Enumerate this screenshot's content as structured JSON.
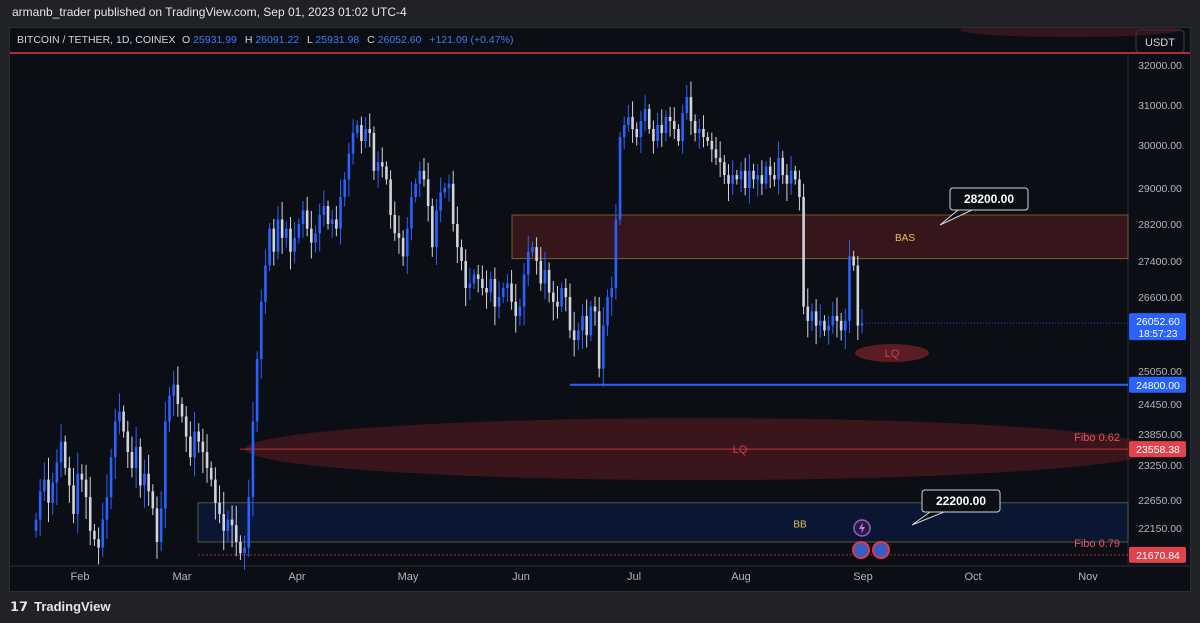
{
  "header": {
    "publish_line": "armanb_trader published on TradingView.com, Sep 01, 2023 01:02 UTC-4"
  },
  "symbol": {
    "name": "BITCOIN / TETHER, 1D, COINEX",
    "o_label": "O",
    "o_value": "25931.99",
    "h_label": "H",
    "h_value": "26091.22",
    "l_label": "L",
    "l_value": "25931.98",
    "c_label": "C",
    "c_value": "26052.60",
    "change": "+121.09 (+0.47%)"
  },
  "currency_button": "USDT",
  "footer": {
    "brand": "TradingView"
  },
  "colors": {
    "up": "#2962ff",
    "down": "#d1d4dc",
    "zone_red": "#5a1b20",
    "zone_blue": "#0b1735",
    "line_blue": "#2962ff",
    "line_red": "#e03a45",
    "accent_yellow": "#e3c05a"
  },
  "chart_data": {
    "type": "candlestick",
    "y_axis": {
      "ticks": [
        "32000.00",
        "31000.00",
        "30000.00",
        "29000.00",
        "28200.00",
        "27400.00",
        "26600.00",
        "25050.00",
        "24450.00",
        "23850.00",
        "23250.00",
        "22650.00",
        "22150.00"
      ],
      "ylim": [
        21600,
        32400
      ]
    },
    "x_axis": {
      "ticks": [
        "Feb",
        "Mar",
        "Apr",
        "May",
        "Jun",
        "Jul",
        "Aug",
        "Sep",
        "Oct",
        "Nov"
      ]
    },
    "price_labels": [
      {
        "value": "26052.60",
        "sub": "18:57:23",
        "kind": "last"
      },
      {
        "value": "24800.00",
        "kind": "blue"
      },
      {
        "value": "23558.38",
        "kind": "red"
      },
      {
        "value": "21670.84",
        "kind": "red"
      }
    ],
    "zones": [
      {
        "label": "BAS",
        "top": 28400,
        "bottom": 27450
      },
      {
        "label": "BB",
        "top": 22600,
        "bottom": 21900
      }
    ],
    "lines": [
      {
        "value": 24800,
        "start": "Jun"
      },
      {
        "value": 23558.38,
        "label": "Fibo 0.62"
      },
      {
        "value": 21670.84,
        "label": "Fibo 0.79"
      },
      {
        "value": 32300
      }
    ],
    "ellipses": [
      {
        "label": "LQ",
        "value": 23558
      },
      {
        "label": "LQ",
        "value": 25300
      }
    ],
    "callouts": [
      {
        "text": "28200.00"
      },
      {
        "text": "22200.00"
      }
    ],
    "approx_closes": [
      22300,
      22800,
      23000,
      22600,
      22950,
      23300,
      23700,
      23200,
      22900,
      22400,
      23100,
      23000,
      22700,
      22100,
      21950,
      21800,
      22300,
      22700,
      23400,
      24100,
      24300,
      23900,
      23500,
      23200,
      23600,
      22900,
      23100,
      22800,
      22500,
      21900,
      22500,
      24100,
      24600,
      24800,
      24450,
      24200,
      23800,
      23400,
      23900,
      23700,
      23500,
      23200,
      23000,
      22600,
      22400,
      22100,
      22300,
      22200,
      21900,
      21700,
      21800,
      22700,
      24100,
      25300,
      26500,
      27300,
      28100,
      27600,
      28300,
      27900,
      28100,
      27600,
      27900,
      28200,
      28500,
      28100,
      27800,
      28000,
      28400,
      28600,
      28200,
      28300,
      28100,
      28800,
      29200,
      29800,
      30300,
      30500,
      30100,
      30400,
      30300,
      29400,
      29600,
      29500,
      29200,
      28400,
      28000,
      27900,
      27500,
      28100,
      28800,
      29100,
      29400,
      29200,
      28600,
      27700,
      28500,
      28900,
      29000,
      29100,
      28200,
      27700,
      27400,
      26800,
      26900,
      27100,
      27000,
      26800,
      26700,
      27000,
      26400,
      26600,
      26800,
      26900,
      26500,
      26200,
      26400,
      27100,
      27600,
      27700,
      27400,
      26900,
      27200,
      26700,
      26500,
      26400,
      26800,
      26600,
      25900,
      25700,
      25900,
      26200,
      25800,
      26400,
      26300,
      25100,
      26000,
      26600,
      26800,
      28300,
      30200,
      30500,
      30700,
      30400,
      30200,
      30600,
      30900,
      30400,
      30100,
      30500,
      30300,
      30700,
      30600,
      30400,
      30100,
      30800,
      31200,
      30600,
      30300,
      30400,
      30200,
      30100,
      29900,
      29700,
      29600,
      29300,
      29100,
      29300,
      29200,
      29400,
      29000,
      29400,
      29200,
      29300,
      29100,
      29500,
      29300,
      29200,
      29700,
      29300,
      29100,
      29400,
      29200,
      28800,
      26400,
      26100,
      26300,
      26000,
      26100,
      25900,
      26000,
      26200,
      26100,
      25900,
      26100,
      27500,
      27300,
      26000,
      26052
    ]
  }
}
